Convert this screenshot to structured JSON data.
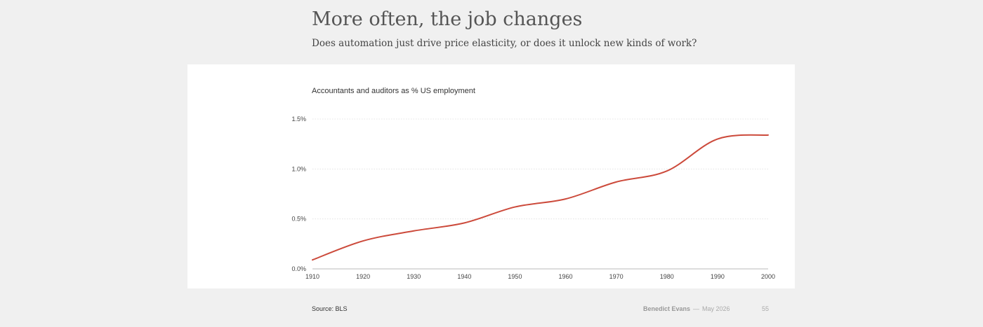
{
  "slide": {
    "title": "More often, the job changes",
    "subtitle": "Does automation just drive price elasticity, or does it unlock new kinds of work?"
  },
  "chart_data": {
    "type": "line",
    "title": "Accountants and auditors as % US employment",
    "xlabel": "",
    "ylabel": "",
    "x": [
      1910,
      1920,
      1930,
      1940,
      1950,
      1960,
      1970,
      1980,
      1990,
      2000
    ],
    "series": [
      {
        "values": [
          0.09,
          0.28,
          0.38,
          0.46,
          0.62,
          0.7,
          0.87,
          0.98,
          1.3,
          1.34
        ],
        "color": "#cc4a3b"
      }
    ],
    "xlim": [
      1910,
      2000
    ],
    "ylim": [
      0,
      1.5
    ],
    "x_ticks": [
      "1910",
      "1920",
      "1930",
      "1940",
      "1950",
      "1960",
      "1970",
      "1980",
      "1990",
      "2000"
    ],
    "y_ticks": [
      {
        "value": 0,
        "label": "0.0%"
      },
      {
        "value": 0.5,
        "label": "0.5%"
      },
      {
        "value": 1.0,
        "label": "1.0%"
      },
      {
        "value": 1.5,
        "label": "1.5%"
      }
    ],
    "grid": "horizontal, dotted"
  },
  "footer": {
    "source": "Source: BLS",
    "author": "Benedict Evans",
    "separator": "—",
    "date": "May 2026",
    "page": "55"
  }
}
